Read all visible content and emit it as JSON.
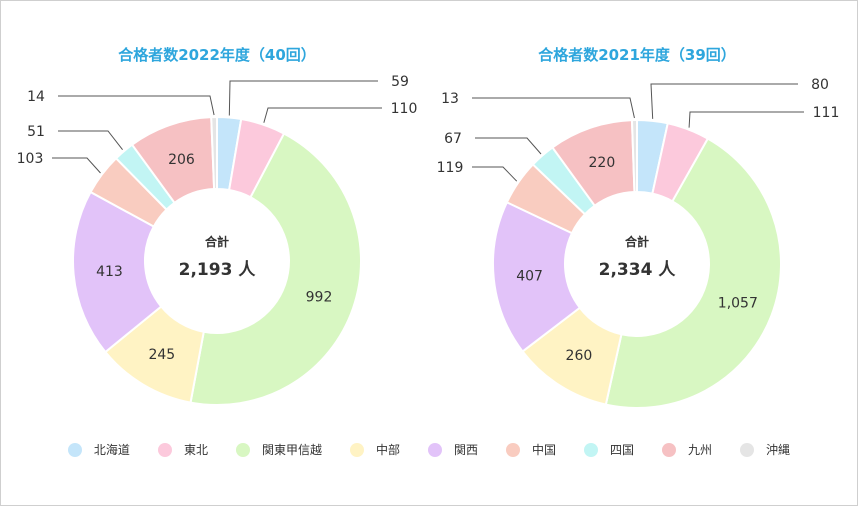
{
  "colors": {
    "title": "#2ea6dd",
    "regions": [
      "#c4e5fa",
      "#fcc9dc",
      "#d8f7c2",
      "#fff3c4",
      "#e2c3f9",
      "#f9ccc0",
      "#c2f5f4",
      "#f6c1c3",
      "#e5e5e5"
    ]
  },
  "legend": [
    "北海道",
    "東北",
    "関東甲信越",
    "中部",
    "関西",
    "中国",
    "四国",
    "九州",
    "沖縄"
  ],
  "chart_data": [
    {
      "type": "pie",
      "title": "合格者数2022年度（40回）",
      "categories": [
        "北海道",
        "東北",
        "関東甲信越",
        "中部",
        "関西",
        "中国",
        "四国",
        "九州",
        "沖縄"
      ],
      "values": [
        59,
        110,
        992,
        245,
        413,
        103,
        51,
        206,
        14
      ],
      "value_labels": [
        "59",
        "110",
        "992",
        "245",
        "413",
        "103",
        "51",
        "206",
        "14"
      ],
      "total_label": "合計",
      "total_value": "2,193 人"
    },
    {
      "type": "pie",
      "title": "合格者数2021年度（39回）",
      "categories": [
        "北海道",
        "東北",
        "関東甲信越",
        "中部",
        "関西",
        "中国",
        "四国",
        "九州",
        "沖縄"
      ],
      "values": [
        80,
        111,
        1057,
        260,
        407,
        119,
        67,
        220,
        13
      ],
      "value_labels": [
        "80",
        "111",
        "1,057",
        "260",
        "407",
        "119",
        "67",
        "220",
        "13"
      ],
      "total_label": "合計",
      "total_value": "2,334 人"
    }
  ]
}
